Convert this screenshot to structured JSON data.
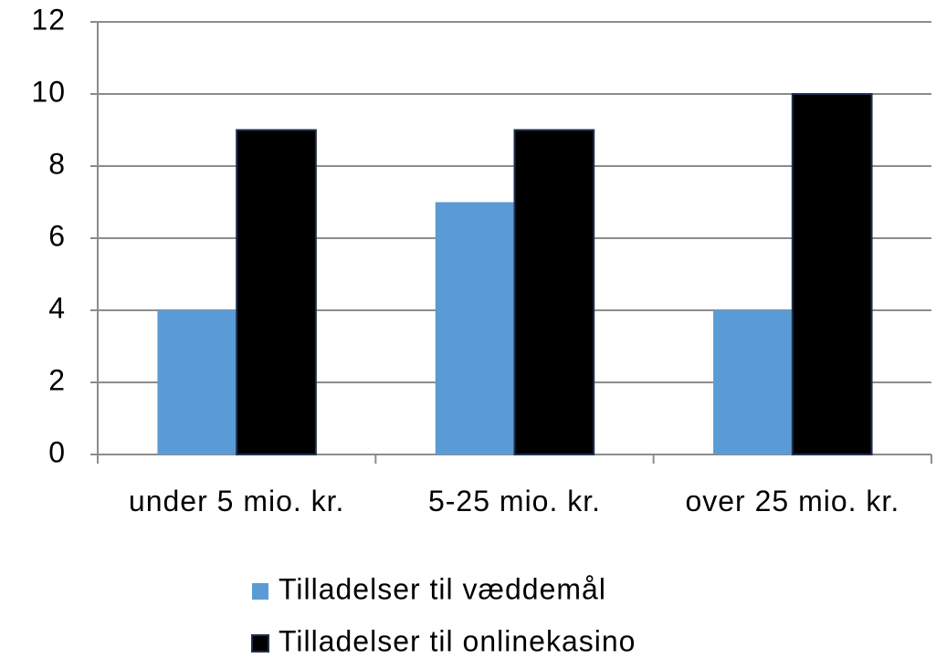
{
  "chart_data": {
    "type": "bar",
    "categories": [
      "under 5 mio. kr.",
      "5-25 mio. kr.",
      "over 25 mio. kr."
    ],
    "series": [
      {
        "name": "Tilladelser til væddemål",
        "color": "#5b9bd5",
        "values": [
          4,
          7,
          4
        ]
      },
      {
        "name": "Tilladelser til onlinekasino",
        "color": "#000000",
        "values": [
          9,
          9,
          10
        ]
      }
    ],
    "ylim": [
      0,
      12
    ],
    "yticks": [
      0,
      2,
      4,
      6,
      8,
      10,
      12
    ],
    "grid": true,
    "legend": "bottom"
  }
}
